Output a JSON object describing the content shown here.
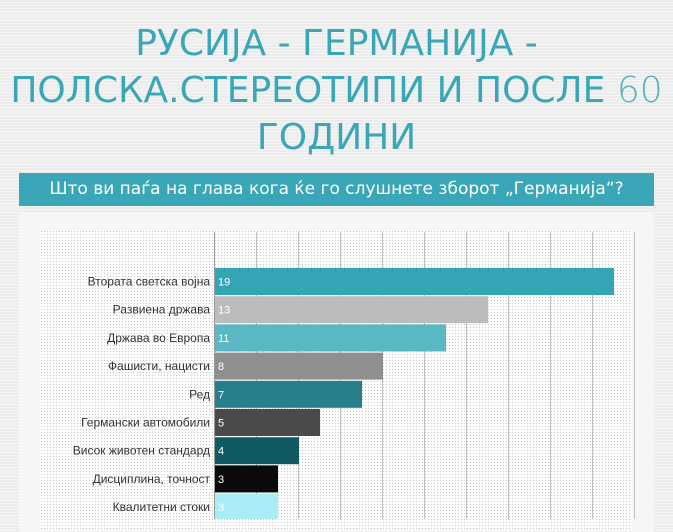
{
  "title": {
    "line1": "РУСИЈА - ГЕРМАНИЈА -",
    "line2_text": "ПОЛСКА.СТЕРЕОТИПИ И ПОСЛЕ ",
    "line2_num": "60",
    "line3": "ГОДИНИ"
  },
  "subtitle": "Што ви паѓа на глава кога ќе го слушнете зборот „Германија“?",
  "colors": {
    "accent": "#3aa7b8"
  },
  "chart_data": {
    "type": "bar",
    "orientation": "horizontal",
    "categories": [
      "Втората светска војна",
      "Развиена држава",
      "Држава во Европа",
      "Фашисти, нацисти",
      "Ред",
      "Германски автомобили",
      "Висок животен стандард",
      "Дисциплина, точност",
      "Квалитетни стоки"
    ],
    "values": [
      19,
      13,
      11,
      8,
      7,
      5,
      4,
      3,
      3
    ],
    "bar_colors": [
      "#33a5b5",
      "#bcbcbc",
      "#5ab7c4",
      "#8f8f8f",
      "#267f8a",
      "#4a4a4a",
      "#0f5a63",
      "#0a0a0a",
      "#a8ecf5"
    ],
    "xlim": [
      0,
      20
    ],
    "grid": true
  }
}
